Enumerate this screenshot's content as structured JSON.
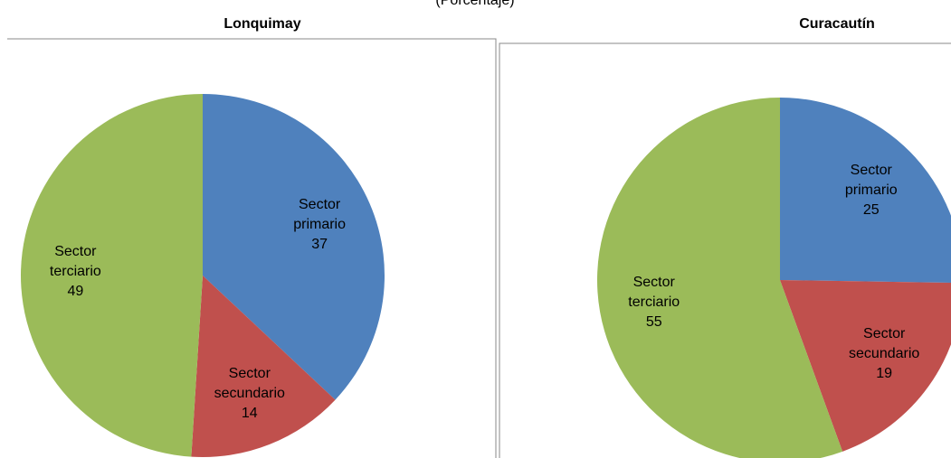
{
  "heading": "(Porcentaje)",
  "chart_data": [
    {
      "type": "pie",
      "title": "Lonquimay",
      "categories": [
        "Sector primario",
        "Sector secundario",
        "Sector terciario"
      ],
      "values": [
        37,
        14,
        49
      ],
      "colors": [
        "#4f81bd",
        "#c0504d",
        "#9bbb59"
      ]
    },
    {
      "type": "pie",
      "title": "Curacautín",
      "categories": [
        "Sector primario",
        "Sector secundario",
        "Sector terciario"
      ],
      "values": [
        25,
        19,
        55
      ],
      "colors": [
        "#4f81bd",
        "#c0504d",
        "#9bbb59"
      ]
    }
  ]
}
